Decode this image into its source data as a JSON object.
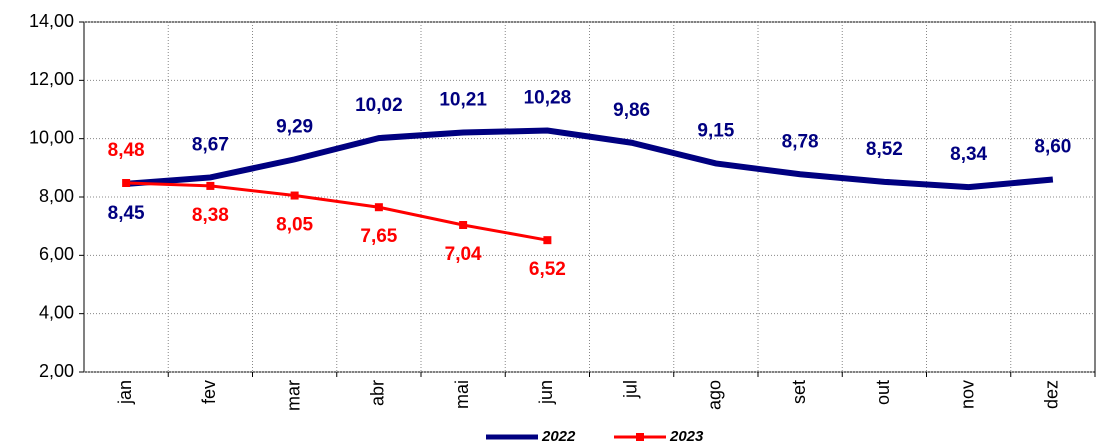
{
  "chart_data": {
    "type": "line",
    "categories": [
      "jan",
      "fev",
      "mar",
      "abr",
      "mai",
      "jun",
      "jul",
      "ago",
      "set",
      "out",
      "nov",
      "dez"
    ],
    "series": [
      {
        "name": "2022",
        "color": "#000080",
        "values": [
          8.45,
          8.67,
          9.29,
          10.02,
          10.21,
          10.28,
          9.86,
          9.15,
          8.78,
          8.52,
          8.34,
          8.6
        ],
        "value_labels": [
          "8,45",
          "8,67",
          "9,29",
          "10,02",
          "10,21",
          "10,28",
          "9,86",
          "9,15",
          "8,78",
          "8,52",
          "8,34",
          "8,60"
        ]
      },
      {
        "name": "2023",
        "color": "#ff0000",
        "values": [
          8.48,
          8.38,
          8.05,
          7.65,
          7.04,
          6.52,
          null,
          null,
          null,
          null,
          null,
          null
        ],
        "value_labels": [
          "8,48",
          "8,38",
          "8,05",
          "7,65",
          "7,04",
          "6,52",
          null,
          null,
          null,
          null,
          null,
          null
        ]
      }
    ],
    "ylim": [
      2,
      14
    ],
    "yticks": [
      {
        "value": 2,
        "label": "2,00"
      },
      {
        "value": 4,
        "label": "4,00"
      },
      {
        "value": 6,
        "label": "6,00"
      },
      {
        "value": 8,
        "label": "8,00"
      },
      {
        "value": 10,
        "label": "10,00"
      },
      {
        "value": 12,
        "label": "12,00"
      },
      {
        "value": 14,
        "label": "14,00"
      }
    ],
    "grid": true,
    "legend": "bottom"
  }
}
